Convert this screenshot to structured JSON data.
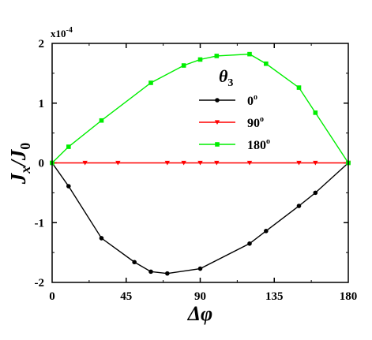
{
  "chart_data": {
    "type": "line",
    "xlabel": "Δφ",
    "ylabel_main": "J",
    "ylabel_sub1": "x",
    "ylabel_mid": "/J",
    "ylabel_sub2": "0",
    "y_scale_label": "x10",
    "y_scale_exp": "-4",
    "xlim": [
      0,
      180
    ],
    "ylim": [
      -2,
      2
    ],
    "xticks": [
      0,
      45,
      90,
      135,
      180
    ],
    "xtick_labels": [
      "0",
      "45",
      "90",
      "135",
      "180"
    ],
    "yticks": [
      -2,
      -1,
      0,
      1,
      2
    ],
    "ytick_labels": [
      "-2",
      "-1",
      "0",
      "1",
      "2"
    ],
    "legend_title": "θ",
    "legend_title_sub": "3",
    "legend_placement": "center",
    "series": [
      {
        "name": "0",
        "name_sup": "o",
        "color": "#000000",
        "marker": "circle",
        "x": [
          0,
          10,
          30,
          50,
          60,
          70,
          90,
          120,
          130,
          150,
          160,
          180
        ],
        "y": [
          0,
          -0.39,
          -1.26,
          -1.66,
          -1.82,
          -1.85,
          -1.77,
          -1.35,
          -1.14,
          -0.72,
          -0.5,
          0
        ]
      },
      {
        "name": "90",
        "name_sup": "o",
        "color": "#ff0000",
        "marker": "triangle-down",
        "x": [
          0,
          20,
          40,
          70,
          80,
          90,
          100,
          120,
          150,
          160,
          180
        ],
        "y": [
          0,
          0,
          0,
          0,
          0,
          0,
          0,
          0,
          0,
          0,
          0
        ]
      },
      {
        "name": "180",
        "name_sup": "o",
        "color": "#00ee00",
        "marker": "square",
        "x": [
          0,
          10,
          30,
          60,
          80,
          90,
          100,
          120,
          130,
          150,
          160,
          180
        ],
        "y": [
          0,
          0.27,
          0.71,
          1.34,
          1.63,
          1.73,
          1.79,
          1.82,
          1.66,
          1.26,
          0.84,
          0
        ]
      }
    ]
  }
}
